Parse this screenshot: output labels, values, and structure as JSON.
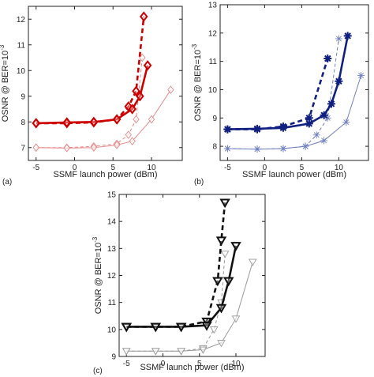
{
  "chart_data": [
    {
      "panel_label": "(a)",
      "type": "line",
      "xlabel": "SSMF launch power (dBm)",
      "ylabel": "OSNR @ BER=10",
      "ylabel_exp": "-3",
      "xlim": [
        -6,
        14
      ],
      "ylim": [
        6.5,
        12.5
      ],
      "xticks": [
        -5,
        0,
        5,
        10
      ],
      "yticks": [
        7,
        8,
        9,
        10,
        11,
        12
      ],
      "grid": false,
      "marker": "diamond",
      "series": [
        {
          "color": "#cc0000",
          "dash": "dashed",
          "width": "bold",
          "x": [
            -5,
            -1,
            2.5,
            5.5,
            7,
            8,
            9
          ],
          "y": [
            7.95,
            7.95,
            7.98,
            8.1,
            8.6,
            9.2,
            12.1
          ]
        },
        {
          "color": "#cc0000",
          "dash": "solid",
          "width": "bold",
          "x": [
            -5,
            -1,
            2.5,
            5.5,
            7.5,
            8.5,
            9.5
          ],
          "y": [
            7.95,
            7.98,
            8.0,
            8.1,
            8.5,
            9.0,
            10.2
          ]
        },
        {
          "color": "#e88888",
          "dash": "dashed",
          "width": "thin",
          "x": [
            -5,
            -1,
            2.5,
            5.5,
            7,
            8,
            8.8
          ],
          "y": [
            7.0,
            7.0,
            7.05,
            7.15,
            7.5,
            8.1,
            10.5
          ]
        },
        {
          "color": "#e88888",
          "dash": "solid",
          "width": "thin",
          "x": [
            -5,
            -1,
            2.5,
            5.5,
            7.5,
            10,
            12.5
          ],
          "y": [
            7.0,
            6.98,
            7.0,
            7.1,
            7.25,
            8.1,
            9.25
          ]
        }
      ]
    },
    {
      "panel_label": "(b)",
      "type": "line",
      "xlabel": "SSMF launch power (dBm)",
      "ylabel": "OSNR @ BER=10",
      "ylabel_exp": "-3",
      "xlim": [
        -6,
        14
      ],
      "ylim": [
        7.5,
        13
      ],
      "xticks": [
        -5,
        0,
        5,
        10
      ],
      "yticks": [
        8,
        9,
        10,
        11,
        12,
        13
      ],
      "grid": false,
      "marker": "asterisk",
      "series": [
        {
          "color": "#102080",
          "dash": "dashed",
          "width": "bold",
          "x": [
            -5,
            -1,
            2.5,
            6,
            8.5
          ],
          "y": [
            8.6,
            8.6,
            8.7,
            9.0,
            11.1
          ]
        },
        {
          "color": "#102080",
          "dash": "solid",
          "width": "bold",
          "x": [
            -5,
            -1,
            2.5,
            6,
            8,
            9,
            10,
            11.2
          ],
          "y": [
            8.6,
            8.62,
            8.65,
            8.8,
            9.1,
            9.5,
            10.3,
            11.9
          ]
        },
        {
          "color": "#7080c0",
          "dash": "dashed",
          "width": "thin",
          "x": [
            -5,
            -1,
            2.5,
            5.5,
            7,
            8.5,
            10
          ],
          "y": [
            7.92,
            7.9,
            7.92,
            8.0,
            8.4,
            9.0,
            11.8
          ]
        },
        {
          "color": "#7080c0",
          "dash": "solid",
          "width": "thin",
          "x": [
            -5,
            -1,
            2.5,
            5.5,
            8,
            11,
            13
          ],
          "y": [
            7.92,
            7.9,
            7.92,
            8.0,
            8.2,
            8.85,
            10.5
          ]
        }
      ]
    },
    {
      "panel_label": "(c)",
      "type": "line",
      "xlabel": "SSMF launch power (dBm)",
      "ylabel": "OSNR @ BER=10",
      "ylabel_exp": "-3",
      "xlim": [
        -6,
        14
      ],
      "ylim": [
        9,
        15
      ],
      "xticks": [
        -5,
        0,
        5,
        10
      ],
      "yticks": [
        9,
        10,
        11,
        12,
        13,
        14,
        15
      ],
      "grid": false,
      "marker": "triangle-down",
      "series": [
        {
          "color": "#111111",
          "dash": "dashed",
          "width": "bold",
          "x": [
            -5,
            -1,
            2.5,
            6,
            7.5,
            8,
            8.5
          ],
          "y": [
            10.1,
            10.1,
            10.1,
            10.3,
            11.8,
            13.3,
            14.7
          ]
        },
        {
          "color": "#111111",
          "dash": "solid",
          "width": "bold",
          "x": [
            -5,
            -1,
            2.5,
            6,
            8,
            9,
            10
          ],
          "y": [
            10.1,
            10.1,
            10.1,
            10.15,
            10.8,
            11.8,
            13.1
          ]
        },
        {
          "color": "#999999",
          "dash": "dashed",
          "width": "thin",
          "x": [
            -5,
            -1,
            2.5,
            5.5,
            7,
            8,
            8.5
          ],
          "y": [
            9.2,
            9.2,
            9.2,
            9.3,
            10.0,
            11.0,
            12.8
          ]
        },
        {
          "color": "#999999",
          "dash": "solid",
          "width": "thin",
          "x": [
            -5,
            -1,
            2.5,
            5.5,
            8,
            10,
            12.3
          ],
          "y": [
            9.2,
            9.2,
            9.2,
            9.25,
            9.5,
            10.4,
            12.5
          ]
        }
      ]
    }
  ]
}
